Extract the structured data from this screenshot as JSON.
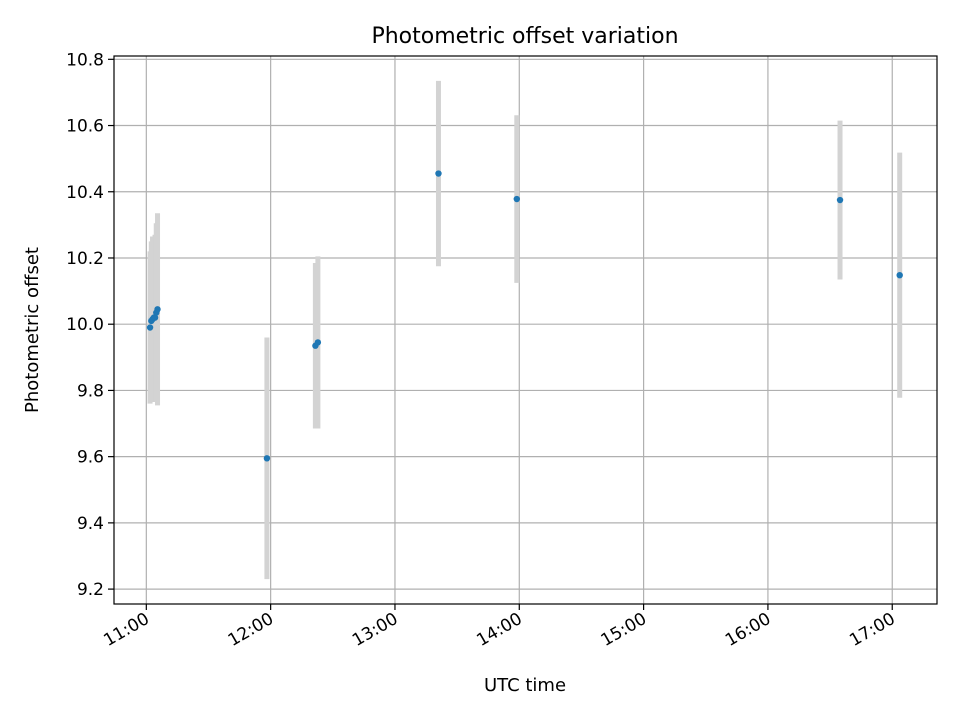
{
  "chart_data": {
    "type": "scatter",
    "title": "Photometric offset variation",
    "xlabel": "UTC time",
    "ylabel": "Photometric offset",
    "x_unit": "hours",
    "xlim": [
      10.74,
      17.36
    ],
    "ylim": [
      9.155,
      10.81
    ],
    "xticks": [
      {
        "value": 11,
        "label": "11:00"
      },
      {
        "value": 12,
        "label": "12:00"
      },
      {
        "value": 13,
        "label": "13:00"
      },
      {
        "value": 14,
        "label": "14:00"
      },
      {
        "value": 15,
        "label": "15:00"
      },
      {
        "value": 16,
        "label": "16:00"
      },
      {
        "value": 17,
        "label": "17:00"
      }
    ],
    "yticks": [
      {
        "value": 9.2,
        "label": "9.2"
      },
      {
        "value": 9.4,
        "label": "9.4"
      },
      {
        "value": 9.6,
        "label": "9.6"
      },
      {
        "value": 9.8,
        "label": "9.8"
      },
      {
        "value": 10.0,
        "label": "10.0"
      },
      {
        "value": 10.2,
        "label": "10.2"
      },
      {
        "value": 10.4,
        "label": "10.4"
      },
      {
        "value": 10.6,
        "label": "10.6"
      },
      {
        "value": 10.8,
        "label": "10.8"
      }
    ],
    "grid": true,
    "points": [
      {
        "x": 11.03,
        "y": 9.99,
        "err": 0.23
      },
      {
        "x": 11.04,
        "y": 10.01,
        "err": 0.24
      },
      {
        "x": 11.05,
        "y": 10.015,
        "err": 0.25
      },
      {
        "x": 11.06,
        "y": 10.02,
        "err": 0.24
      },
      {
        "x": 11.07,
        "y": 10.02,
        "err": 0.25
      },
      {
        "x": 11.08,
        "y": 10.035,
        "err": 0.27
      },
      {
        "x": 11.09,
        "y": 10.045,
        "err": 0.29
      },
      {
        "x": 11.97,
        "y": 9.595,
        "err": 0.365
      },
      {
        "x": 12.36,
        "y": 9.935,
        "err": 0.25
      },
      {
        "x": 12.38,
        "y": 9.945,
        "err": 0.26
      },
      {
        "x": 13.35,
        "y": 10.455,
        "err": 0.28
      },
      {
        "x": 13.98,
        "y": 10.378,
        "err": 0.253
      },
      {
        "x": 16.58,
        "y": 10.375,
        "err": 0.24
      },
      {
        "x": 17.06,
        "y": 10.148,
        "err": 0.37
      }
    ],
    "colors": {
      "point": "#1f77b4",
      "errorbar": "#d3d3d3",
      "grid": "#b0b0b0",
      "axes": "#000000"
    }
  }
}
